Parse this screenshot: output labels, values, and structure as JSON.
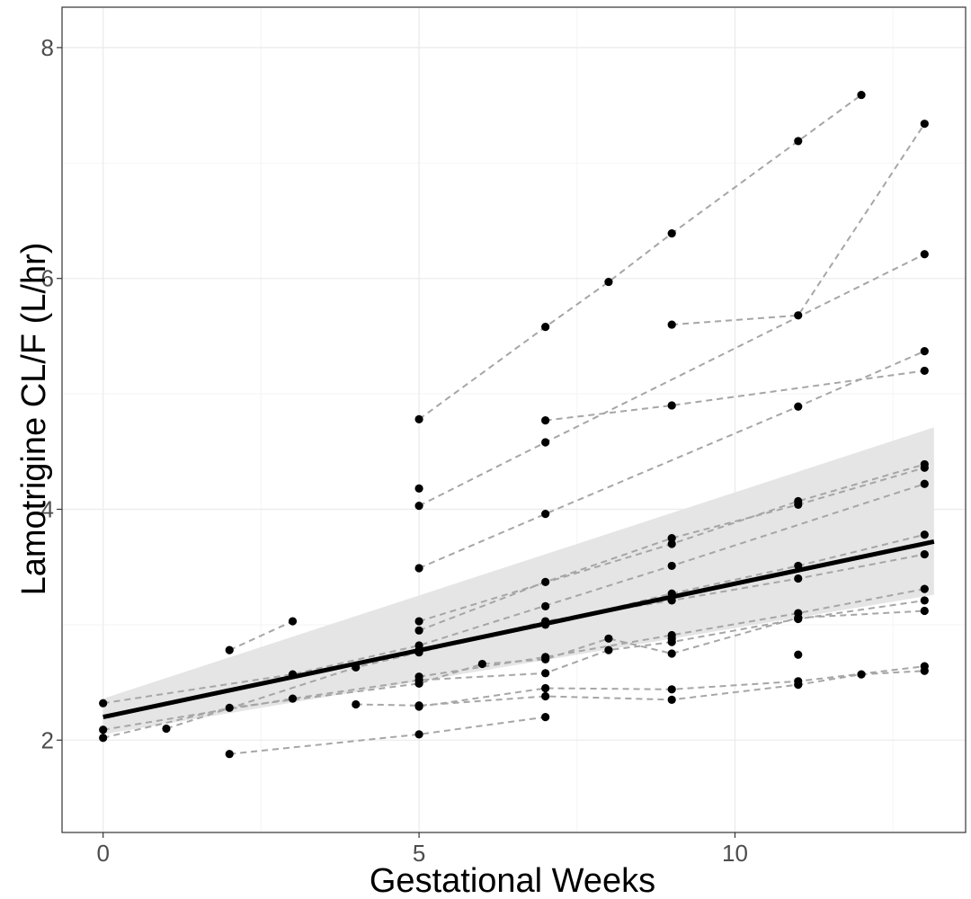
{
  "chart_data": {
    "type": "scatter",
    "title": "",
    "xlabel": "Gestational Weeks",
    "ylabel": "Lamotrigine CL/F (L/hr)",
    "xlim": [
      -0.65,
      13.65
    ],
    "ylim": [
      1.2,
      8.35
    ],
    "x_ticks": [
      0,
      5,
      10
    ],
    "y_ticks": [
      2,
      4,
      6,
      8
    ],
    "grid": true,
    "legend": "none",
    "colors": {
      "points": "#000000",
      "subject_lines": "#a6a6a6",
      "fit_line": "#000000",
      "ribbon": "#e5e5e5",
      "grid_major": "#ebebeb",
      "grid_minor": "#f3f3f3",
      "panel_border": "#333333"
    },
    "fit": {
      "x": [
        0,
        13.15
      ],
      "y": [
        2.2,
        3.72
      ],
      "ci_lower": [
        2.05,
        3.26
      ],
      "ci_upper": [
        2.36,
        4.71
      ]
    },
    "subjects": [
      {
        "x": [
          5,
          7,
          8,
          9,
          11,
          12
        ],
        "y": [
          4.78,
          5.58,
          5.97,
          6.39,
          7.19,
          7.59
        ]
      },
      {
        "x": [
          9,
          11,
          13
        ],
        "y": [
          5.6,
          5.68,
          7.34
        ]
      },
      {
        "x": [
          5,
          7,
          13
        ],
        "y": [
          4.03,
          4.58,
          6.21
        ]
      },
      {
        "x": [
          5,
          7,
          11,
          13
        ],
        "y": [
          3.49,
          3.96,
          4.89,
          5.37
        ]
      },
      {
        "x": [
          7,
          9,
          13
        ],
        "y": [
          4.77,
          4.9,
          5.2
        ]
      },
      {
        "x": [
          2,
          3
        ],
        "y": [
          2.78,
          3.03
        ]
      },
      {
        "x": [
          5,
          9,
          11,
          13
        ],
        "y": [
          3.03,
          3.7,
          4.07,
          4.39
        ]
      },
      {
        "x": [
          5,
          7,
          9,
          11,
          13
        ],
        "y": [
          2.95,
          3.37,
          3.75,
          4.04,
          4.36
        ]
      },
      {
        "x": [
          0,
          3,
          5,
          9,
          13
        ],
        "y": [
          2.32,
          2.57,
          2.82,
          3.51,
          4.22
        ]
      },
      {
        "x": [
          5,
          7,
          9,
          11,
          13
        ],
        "y": [
          2.78,
          3.0,
          3.27,
          3.51,
          3.78
        ]
      },
      {
        "x": [
          1,
          4,
          5,
          7,
          9,
          11,
          13
        ],
        "y": [
          2.1,
          2.63,
          2.76,
          3.03,
          3.21,
          3.4,
          3.61
        ]
      },
      {
        "x": [
          5,
          7,
          9,
          11,
          13
        ],
        "y": [
          2.55,
          2.72,
          2.91,
          3.1,
          3.31
        ]
      },
      {
        "x": [
          0,
          3,
          5,
          7,
          8,
          9,
          11,
          13
        ],
        "y": [
          2.09,
          2.36,
          2.52,
          2.58,
          2.78,
          2.85,
          3.05,
          3.21
        ]
      },
      {
        "x": [
          0,
          2,
          5,
          6,
          7,
          8,
          9,
          11,
          13
        ],
        "y": [
          2.02,
          2.28,
          2.49,
          2.66,
          2.7,
          2.88,
          2.75,
          3.06,
          3.12
        ]
      },
      {
        "x": [
          5,
          7,
          9,
          11,
          13
        ],
        "y": [
          2.29,
          2.45,
          2.44,
          2.51,
          2.64
        ]
      },
      {
        "x": [
          4,
          5,
          7,
          9,
          11,
          12,
          13
        ],
        "y": [
          2.31,
          2.3,
          2.38,
          2.35,
          2.48,
          2.57,
          2.6
        ]
      },
      {
        "x": [
          2,
          5,
          7
        ],
        "y": [
          1.88,
          2.05,
          2.2
        ]
      }
    ],
    "extra_points": [
      {
        "x": 5,
        "y": 4.18
      },
      {
        "x": 7,
        "y": 3.16
      },
      {
        "x": 11,
        "y": 2.74
      },
      {
        "x": 9,
        "y": 2.88
      }
    ]
  }
}
